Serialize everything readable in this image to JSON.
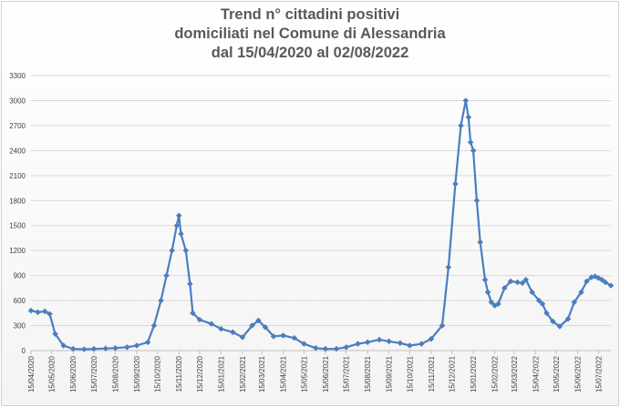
{
  "chart_data": {
    "type": "line",
    "title": [
      "Trend n° cittadini positivi",
      "domiciliati nel Comune di Alessandria",
      "dal 15/04/2020 al 02/08/2022"
    ],
    "xlabel": "",
    "ylabel": "",
    "ylim": [
      0,
      3300
    ],
    "yticks": [
      0,
      300,
      600,
      900,
      1200,
      1500,
      1800,
      2100,
      2400,
      2700,
      3000,
      3300
    ],
    "xlim": [
      "2020-04-15",
      "2022-08-02"
    ],
    "xticks": [
      "15/04/2020",
      "15/05/2020",
      "15/06/2020",
      "15/07/2020",
      "15/08/2020",
      "15/09/2020",
      "15/10/2020",
      "15/11/2020",
      "15/12/2020",
      "15/01/2021",
      "15/02/2021",
      "15/03/2021",
      "15/04/2021",
      "15/05/2021",
      "15/06/2021",
      "15/07/2021",
      "15/08/2021",
      "15/09/2021",
      "15/10/2021",
      "15/11/2021",
      "15/12/2021",
      "15/01/2022",
      "15/02/2022",
      "15/03/2022",
      "15/04/2022",
      "15/05/2022",
      "15/06/2022",
      "15/07/2022"
    ],
    "grid": true,
    "legend": "none",
    "series_color": "#4a7ebf",
    "series": [
      {
        "x": [
          "2020-04-15",
          "2020-04-25",
          "2020-05-05",
          "2020-05-12",
          "2020-05-20",
          "2020-06-01",
          "2020-06-15",
          "2020-07-01",
          "2020-07-15",
          "2020-08-01",
          "2020-08-15",
          "2020-09-01",
          "2020-09-15",
          "2020-10-01",
          "2020-10-10",
          "2020-10-20",
          "2020-10-28",
          "2020-11-05",
          "2020-11-12",
          "2020-11-15",
          "2020-11-18",
          "2020-11-25",
          "2020-12-01",
          "2020-12-05",
          "2020-12-15",
          "2021-01-01",
          "2021-01-15",
          "2021-02-01",
          "2021-02-15",
          "2021-03-01",
          "2021-03-10",
          "2021-03-20",
          "2021-04-01",
          "2021-04-15",
          "2021-05-01",
          "2021-05-15",
          "2021-06-01",
          "2021-06-15",
          "2021-07-01",
          "2021-07-15",
          "2021-08-01",
          "2021-08-15",
          "2021-09-01",
          "2021-09-15",
          "2021-10-01",
          "2021-10-15",
          "2021-11-01",
          "2021-11-15",
          "2021-12-01",
          "2021-12-10",
          "2021-12-20",
          "2021-12-28",
          "2022-01-04",
          "2022-01-08",
          "2022-01-11",
          "2022-01-15",
          "2022-01-20",
          "2022-01-25",
          "2022-02-01",
          "2022-02-05",
          "2022-02-10",
          "2022-02-15",
          "2022-02-20",
          "2022-03-01",
          "2022-03-10",
          "2022-03-20",
          "2022-03-27",
          "2022-04-01",
          "2022-04-10",
          "2022-04-20",
          "2022-04-25",
          "2022-05-01",
          "2022-05-10",
          "2022-05-20",
          "2022-06-01",
          "2022-06-10",
          "2022-06-20",
          "2022-06-28",
          "2022-07-05",
          "2022-07-10",
          "2022-07-15",
          "2022-07-20",
          "2022-07-25",
          "2022-08-02"
        ],
        "values": [
          480,
          460,
          470,
          440,
          200,
          60,
          20,
          15,
          20,
          25,
          30,
          40,
          60,
          100,
          300,
          600,
          900,
          1200,
          1500,
          1620,
          1400,
          1200,
          800,
          450,
          370,
          320,
          260,
          220,
          160,
          300,
          360,
          280,
          170,
          180,
          150,
          80,
          30,
          20,
          20,
          40,
          80,
          100,
          130,
          110,
          90,
          60,
          80,
          140,
          300,
          1000,
          2000,
          2700,
          3000,
          2800,
          2500,
          2400,
          1800,
          1300,
          850,
          700,
          580,
          540,
          560,
          750,
          830,
          820,
          810,
          850,
          700,
          600,
          560,
          450,
          350,
          290,
          380,
          580,
          700,
          830,
          880,
          890,
          870,
          850,
          820,
          780
        ]
      }
    ]
  }
}
